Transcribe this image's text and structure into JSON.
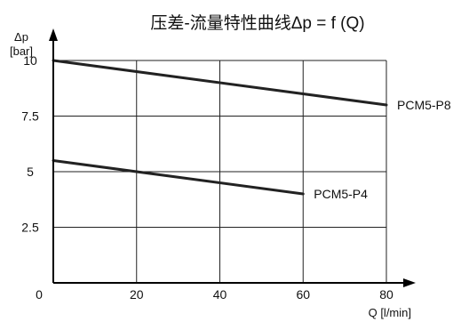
{
  "chart_data": {
    "type": "line",
    "title": "压差-流量特性曲线Δp = f (Q)",
    "xlabel": "Q [l/min]",
    "ylabel": [
      "Δp",
      "[bar]"
    ],
    "xlim": [
      0,
      80
    ],
    "ylim": [
      0,
      10
    ],
    "x_ticks": [
      0,
      20,
      40,
      60,
      80
    ],
    "y_ticks": [
      2.5,
      5,
      7.5,
      10
    ],
    "x_tick_labels": [
      "0",
      "20",
      "40",
      "60",
      "80"
    ],
    "y_tick_labels": [
      "2.5",
      "5",
      "7.5",
      "10"
    ],
    "grid": true,
    "series": [
      {
        "name": "PCM5-P8",
        "x": [
          0,
          80
        ],
        "y": [
          10,
          8
        ]
      },
      {
        "name": "PCM5-P4",
        "x": [
          0,
          60
        ],
        "y": [
          5.5,
          4
        ]
      }
    ]
  }
}
